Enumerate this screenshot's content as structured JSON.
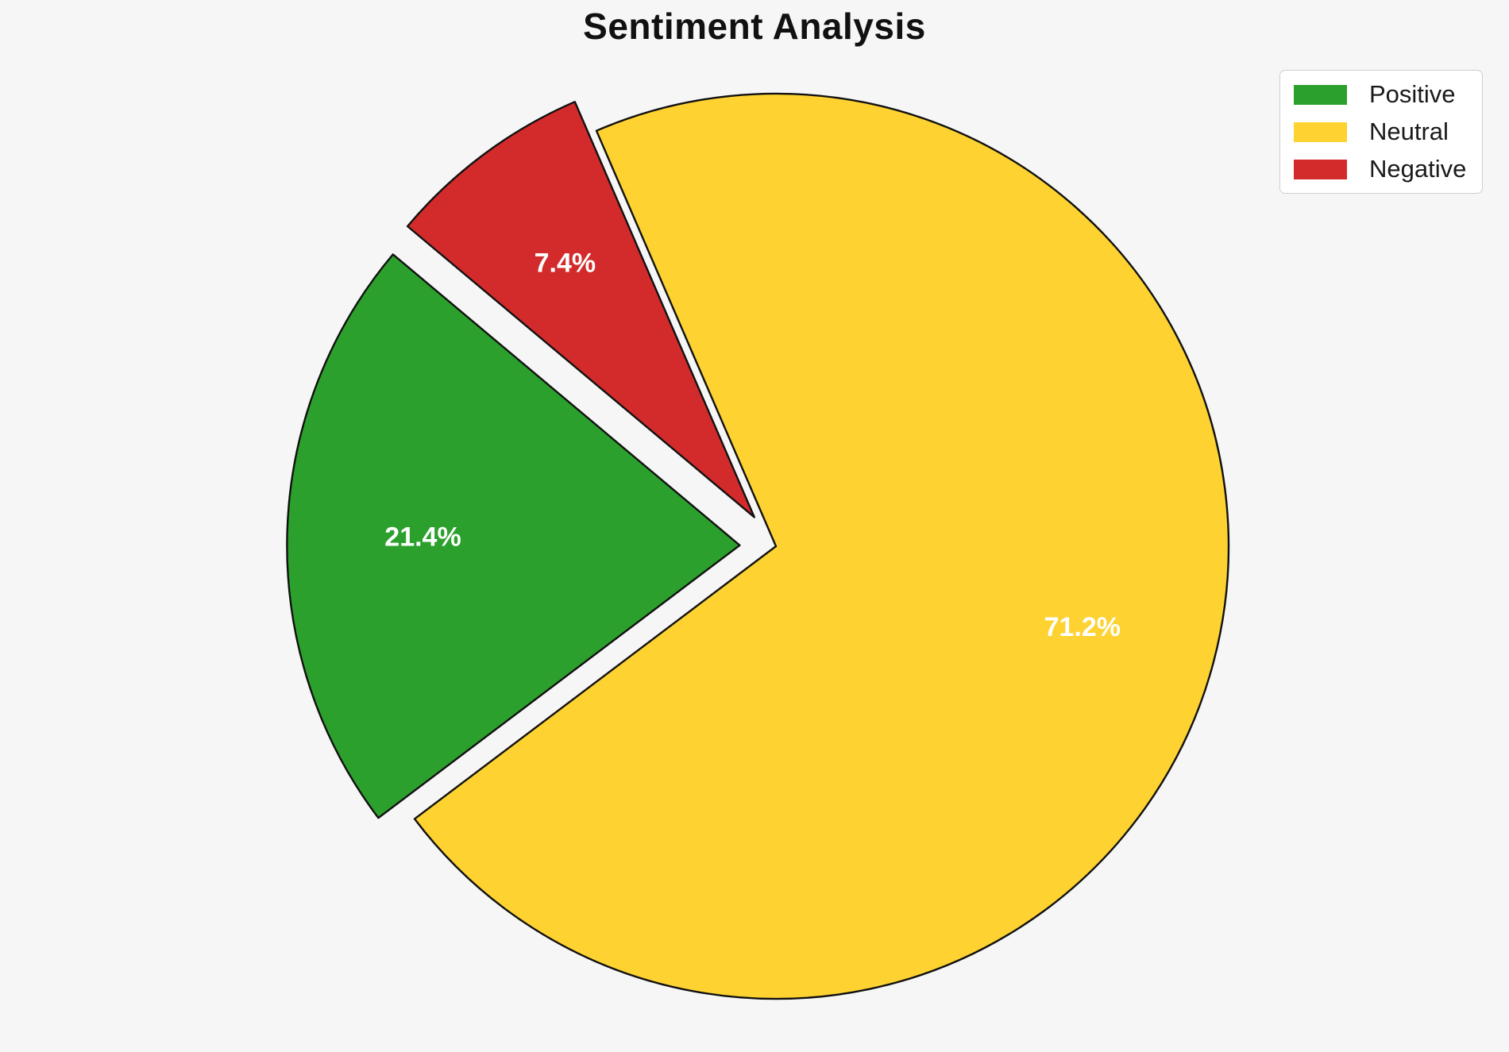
{
  "page": {
    "background_color": "#f6f6f7"
  },
  "chart_data": {
    "type": "pie",
    "title": "Sentiment Analysis",
    "categories": [
      "Positive",
      "Neutral",
      "Negative"
    ],
    "values": [
      21.4,
      71.2,
      7.4
    ],
    "pct_labels": [
      "21.4%",
      "71.2%",
      "7.4%"
    ],
    "colors": [
      "#2ca02c",
      "#fdd231",
      "#d32b2b"
    ],
    "start_angle": 140,
    "direction": "counterclockwise",
    "explode": [
      0.08,
      0,
      0.08
    ],
    "pct_distance": 0.7,
    "label_color": "#ffffff",
    "edge_color": "#111111",
    "legend_position": "upper right",
    "legend": {
      "entries": [
        {
          "label": "Positive",
          "color": "#2ca02c"
        },
        {
          "label": "Neutral",
          "color": "#fdd231"
        },
        {
          "label": "Negative",
          "color": "#d32b2b"
        }
      ]
    }
  }
}
